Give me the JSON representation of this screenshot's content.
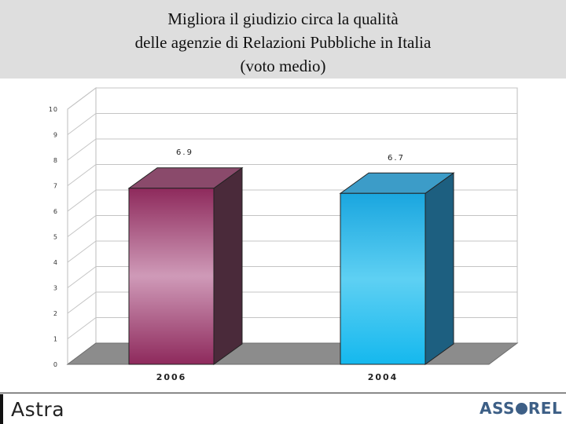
{
  "title_lines": [
    "Migliora il giudizio circa la qualità",
    "delle agenzie di Relazioni Pubbliche in Italia",
    "(voto medio)"
  ],
  "chart_data": {
    "type": "bar",
    "categories": [
      "2006",
      "2004"
    ],
    "values": [
      6.9,
      6.7
    ],
    "value_labels": [
      "6.9",
      "6.7"
    ],
    "ylim": [
      0,
      10
    ],
    "yticks": [
      0,
      1,
      2,
      3,
      4,
      5,
      6,
      7,
      8,
      9,
      10
    ],
    "grid": true,
    "style": "3d",
    "colors": [
      "#a0406f",
      "#1ba8e0"
    ]
  },
  "footer": {
    "left_logo": "Astra",
    "right_logo_start": "ASS",
    "right_logo_end": "REL"
  }
}
